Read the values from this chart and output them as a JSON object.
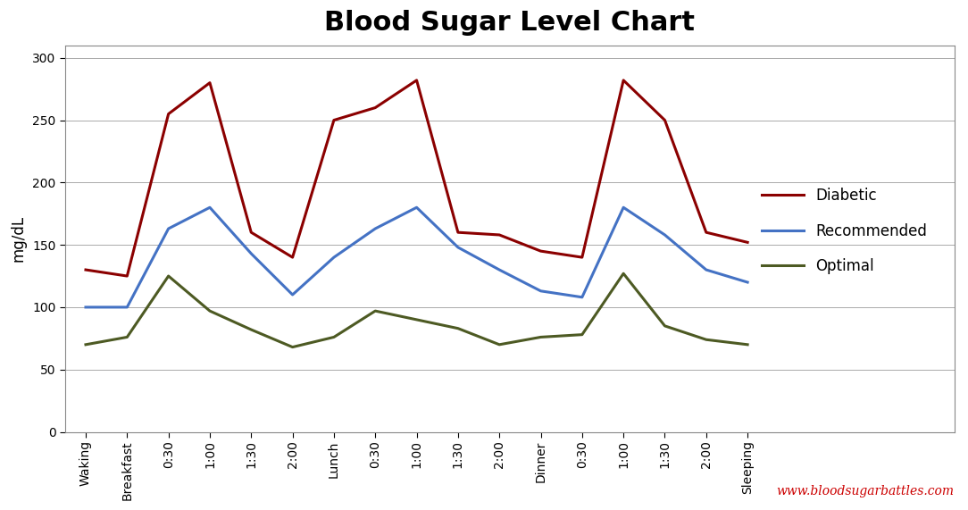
{
  "title": "Blood Sugar Level Chart",
  "ylabel": "mg/dL",
  "background_color": "#ffffff",
  "title_fontsize": 22,
  "title_fontweight": "bold",
  "categories": [
    "Waking",
    "Breakfast",
    "0:30",
    "1:00",
    "1:30",
    "2:00",
    "Lunch",
    "0:30",
    "1:00",
    "1:30",
    "2:00",
    "Dinner",
    "0:30",
    "1:00",
    "1:30",
    "2:00",
    "Sleeping"
  ],
  "diabetic": [
    130,
    125,
    255,
    280,
    160,
    140,
    250,
    260,
    282,
    160,
    158,
    145,
    140,
    282,
    250,
    160,
    152
  ],
  "recommended": [
    100,
    100,
    163,
    180,
    143,
    110,
    140,
    163,
    180,
    148,
    130,
    113,
    108,
    180,
    158,
    130,
    120
  ],
  "optimal": [
    70,
    76,
    125,
    97,
    82,
    68,
    76,
    97,
    90,
    83,
    70,
    76,
    78,
    127,
    85,
    74,
    70
  ],
  "diabetic_color": "#8B0000",
  "recommended_color": "#4472C4",
  "optimal_color": "#4D5A23",
  "ylim": [
    0,
    310
  ],
  "yticks": [
    0,
    50,
    100,
    150,
    200,
    250,
    300
  ],
  "legend_labels": [
    "Diabetic",
    "Recommended",
    "Optimal"
  ],
  "watermark": "www.bloodsugarbattles.com",
  "watermark_color": "#CC0000",
  "grid_color": "#AAAAAA",
  "border_color": "#888888"
}
